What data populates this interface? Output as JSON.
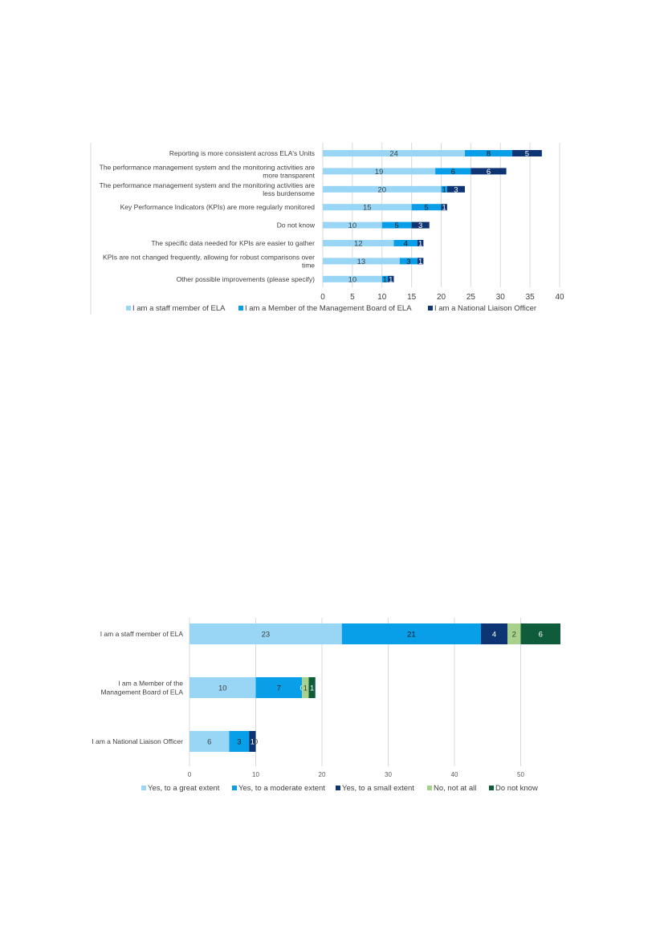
{
  "chart_data": [
    {
      "type": "bar",
      "orientation": "horizontal",
      "stacked": true,
      "categories": [
        [
          "Reporting is more consistent across ELA's Units"
        ],
        [
          "The performance management system and the monitoring activities are",
          "more transparent"
        ],
        [
          "The performance management system and the monitoring activities are",
          "less burdensome"
        ],
        [
          "Key Performance Indicators (KPIs) are more regularly monitored"
        ],
        [
          "Do not know"
        ],
        [
          "The specific data needed for KPIs are easier to gather"
        ],
        [
          "KPIs are not changed frequently, allowing for robust comparisons over",
          "time"
        ],
        [
          "Other possible improvements (please specify)"
        ]
      ],
      "series": [
        {
          "name": "I am a staff member of ELA",
          "color": "#99d6f5",
          "label_color": "#404040",
          "values": [
            24,
            19,
            20,
            15,
            10,
            12,
            13,
            10
          ]
        },
        {
          "name": "I am a Member of the Management Board of ELA",
          "color": "#089ee8",
          "label_color": "#1a1a1a",
          "values": [
            8,
            6,
            1,
            5,
            5,
            4,
            3,
            1
          ]
        },
        {
          "name": "I am a National Liaison Officer",
          "color": "#0d3473",
          "label_color": "#ffffff",
          "values": [
            5,
            6,
            3,
            1,
            3,
            1,
            1,
            1
          ]
        }
      ],
      "xlim": [
        0,
        40
      ],
      "xticks": [
        0,
        5,
        10,
        15,
        20,
        25,
        30,
        35,
        40
      ],
      "grid": true,
      "legend": "bottom"
    },
    {
      "type": "bar",
      "orientation": "horizontal",
      "stacked": true,
      "categories": [
        [
          "I am a staff member of ELA"
        ],
        [
          "I am a Member of the",
          "Management Board of ELA"
        ],
        [
          "I am a National Liaison Officer"
        ]
      ],
      "series": [
        {
          "name": "Yes, to a great extent",
          "color": "#99d6f5",
          "label_color": "#404040",
          "values": [
            23,
            10,
            6
          ]
        },
        {
          "name": "Yes, to a moderate extent",
          "color": "#089ee8",
          "label_color": "#1a1a1a",
          "values": [
            21,
            7,
            3
          ]
        },
        {
          "name": "Yes, to a small extent",
          "color": "#0d3473",
          "label_color": "#ffffff",
          "values": [
            4,
            0,
            1
          ]
        },
        {
          "name": "No, not at all",
          "color": "#a9d18e",
          "label_color": "#404040",
          "values": [
            2,
            1,
            0
          ]
        },
        {
          "name": "Do not know",
          "color": "#0f5c3b",
          "label_color": "#ffffff",
          "values": [
            6,
            1,
            0
          ]
        }
      ],
      "xlim": [
        0,
        56
      ],
      "xticks": [
        0,
        10,
        20,
        30,
        40,
        50
      ],
      "grid": true,
      "legend": "bottom"
    }
  ]
}
